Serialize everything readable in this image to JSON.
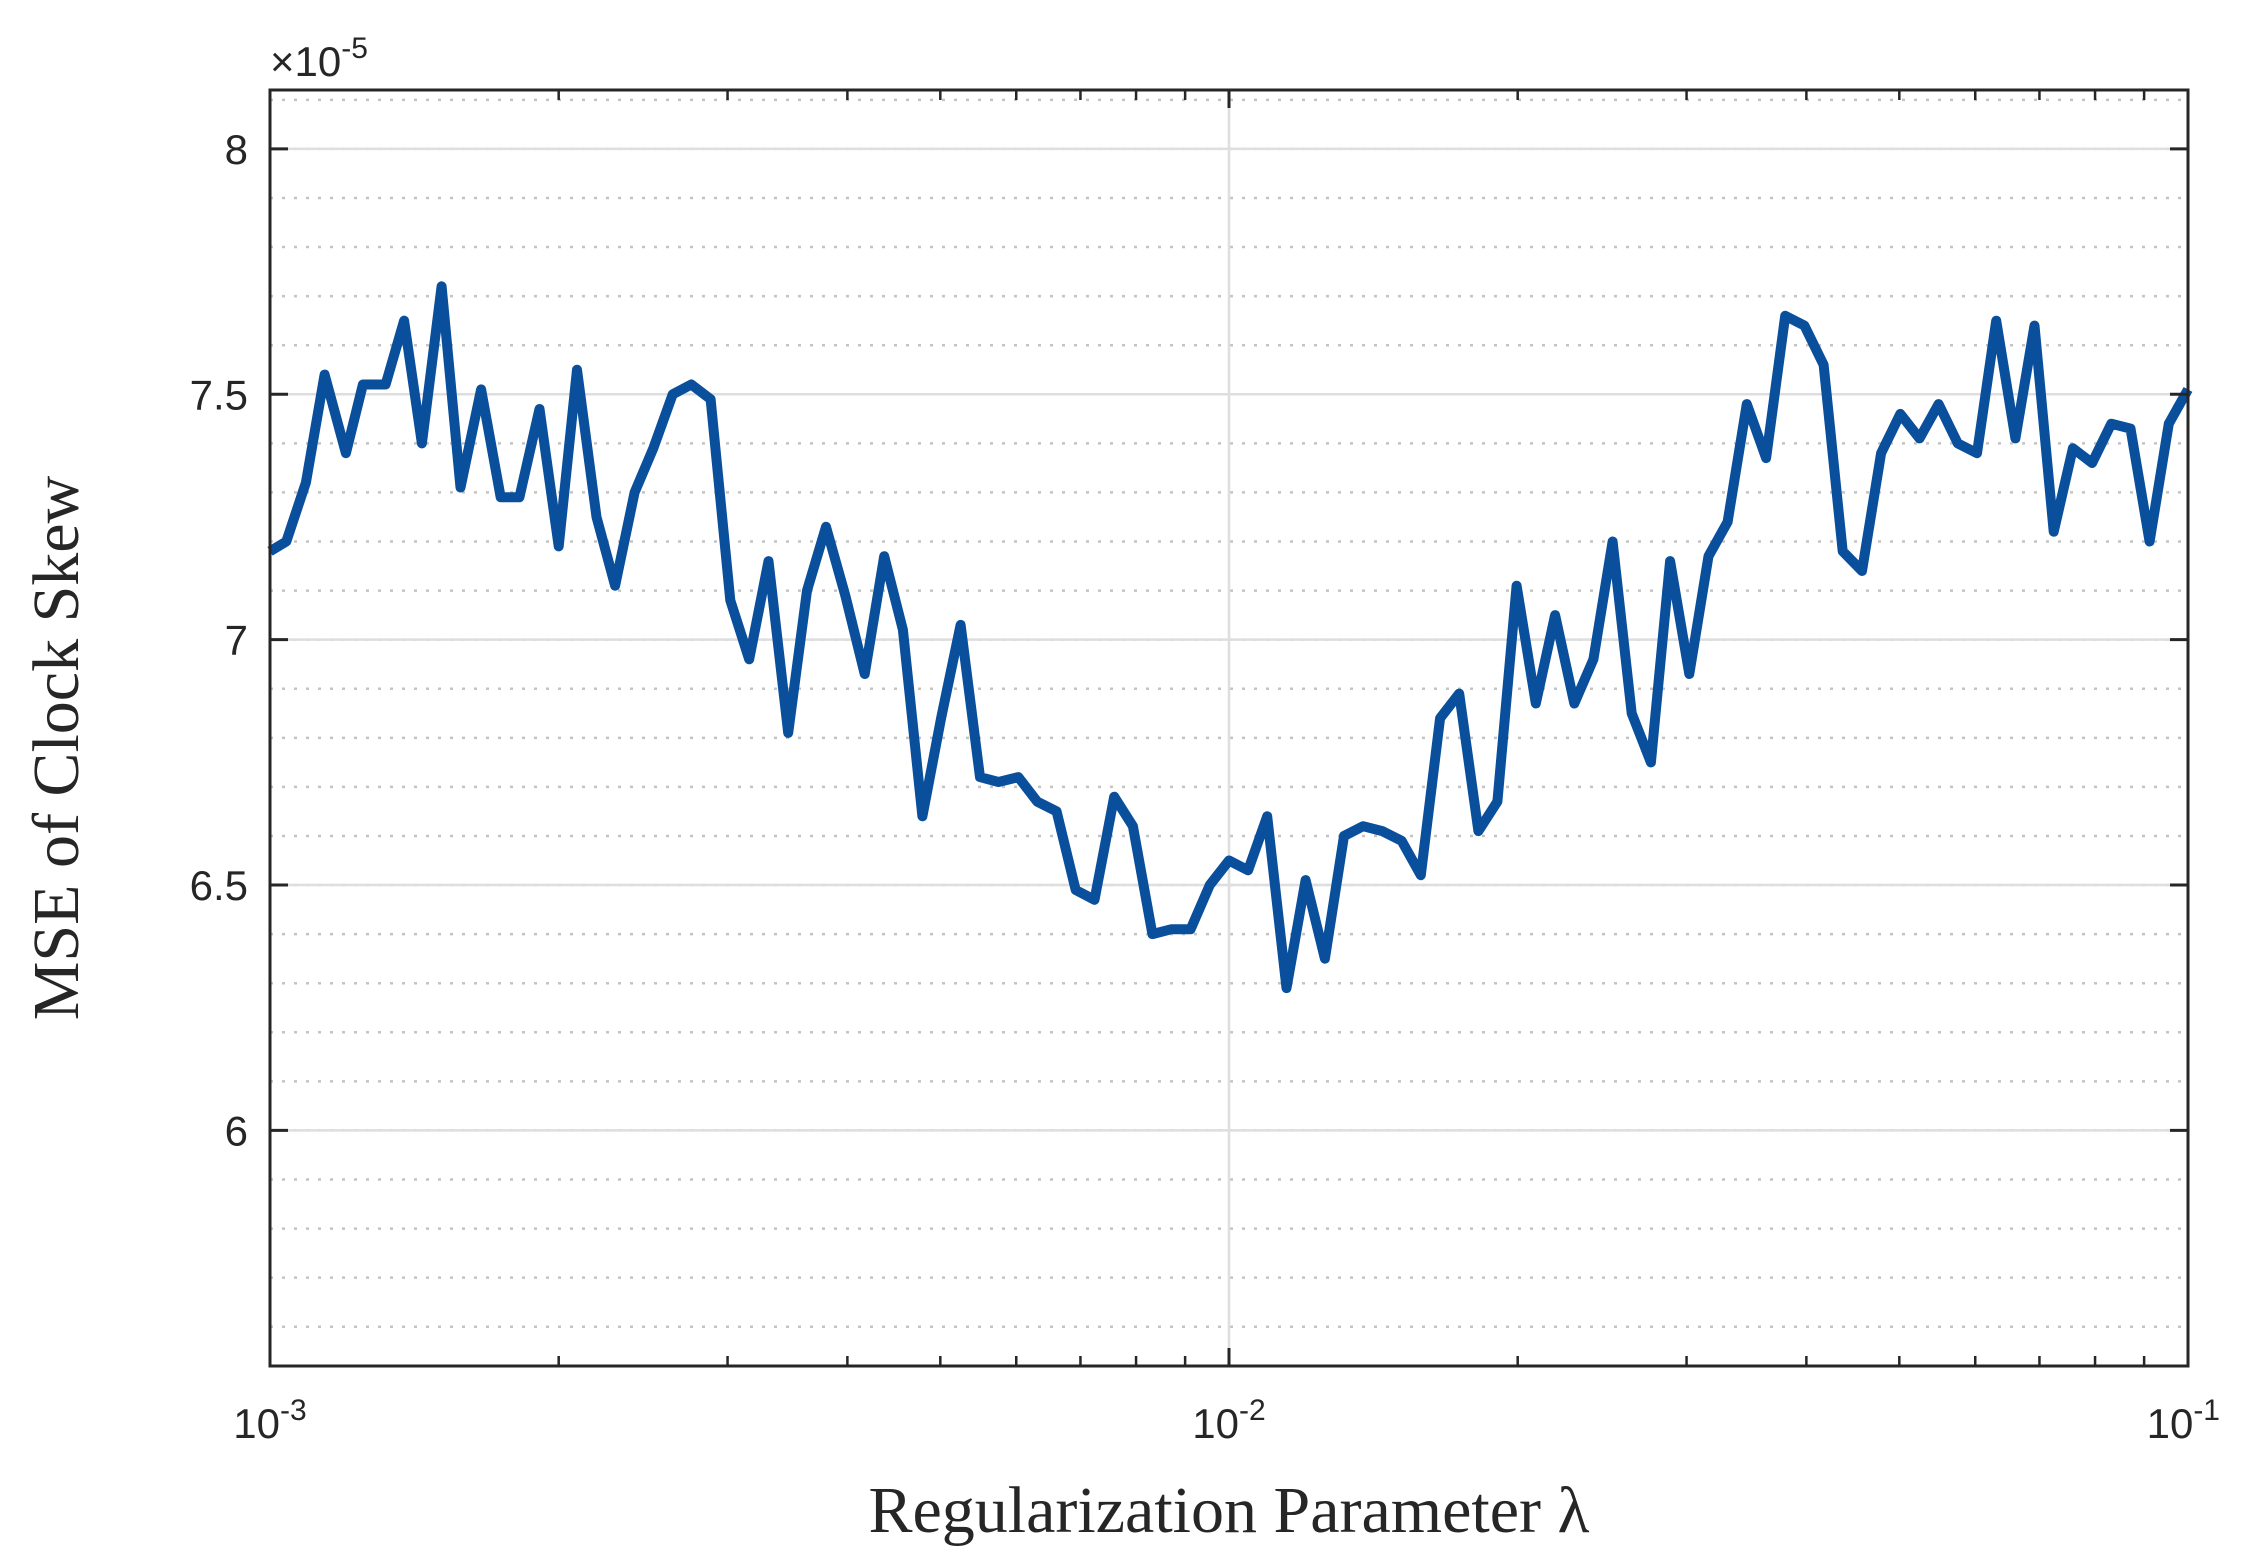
{
  "chart_data": {
    "type": "line",
    "xlabel": "Regularization Parameter λ",
    "ylabel": "MSE of Clock Skew",
    "x_scale": "log",
    "xlim": [
      0.001,
      0.1
    ],
    "ylim": [
      5.52e-05,
      8.12e-05
    ],
    "y_multiplier_label": {
      "base": "×10",
      "exponent": "-5"
    },
    "x_ticks": [
      {
        "value": 0.001,
        "base": "10",
        "exponent": "-3"
      },
      {
        "value": 0.01,
        "base": "10",
        "exponent": "-2"
      },
      {
        "value": 0.1,
        "base": "10",
        "exponent": "-1"
      }
    ],
    "y_ticks": [
      {
        "value": 6e-05,
        "label": "6"
      },
      {
        "value": 6.5e-05,
        "label": "6.5"
      },
      {
        "value": 7e-05,
        "label": "7"
      },
      {
        "value": 7.5e-05,
        "label": "7.5"
      },
      {
        "value": 8e-05,
        "label": "8"
      }
    ],
    "grid": {
      "major": true,
      "minor_y": true,
      "minor_y_step": 1e-06
    },
    "line_color": "#0a4f9c",
    "series": [
      {
        "x": [
          0.001,
          0.00104,
          0.00109,
          0.00114,
          0.0012,
          0.00125,
          0.00132,
          0.00138,
          0.00144,
          0.00151,
          0.00158,
          0.00166,
          0.00174,
          0.00182,
          0.00191,
          0.002,
          0.00209,
          0.00219,
          0.00229,
          0.0024,
          0.00251,
          0.00263,
          0.00275,
          0.00288,
          0.00302,
          0.00316,
          0.00331,
          0.00347,
          0.00363,
          0.0038,
          0.00398,
          0.00417,
          0.00437,
          0.00457,
          0.00479,
          0.00501,
          0.00525,
          0.0055,
          0.00575,
          0.00603,
          0.00631,
          0.00661,
          0.00692,
          0.00724,
          0.00759,
          0.00794,
          0.00832,
          0.00871,
          0.00912,
          0.00955,
          0.01,
          0.01047,
          0.01096,
          0.01148,
          0.01202,
          0.01259,
          0.01318,
          0.0138,
          0.01445,
          0.01514,
          0.01585,
          0.0166,
          0.01738,
          0.0182,
          0.01905,
          0.01995,
          0.02089,
          0.02188,
          0.02291,
          0.02399,
          0.02512,
          0.0263,
          0.02754,
          0.02884,
          0.0302,
          0.03162,
          0.03311,
          0.03467,
          0.03631,
          0.03802,
          0.03981,
          0.04169,
          0.04365,
          0.04571,
          0.04786,
          0.05012,
          0.05248,
          0.05495,
          0.05754,
          0.06026,
          0.0631,
          0.06607,
          0.06918,
          0.07244,
          0.07586,
          0.07943,
          0.08318,
          0.0871,
          0.0912,
          0.0955,
          0.1
        ],
        "y": [
          7.18,
          7.2,
          7.32,
          7.54,
          7.38,
          7.52,
          7.52,
          7.65,
          7.4,
          7.72,
          7.31,
          7.51,
          7.29,
          7.29,
          7.47,
          7.19,
          7.55,
          7.25,
          7.11,
          7.3,
          7.39,
          7.5,
          7.52,
          7.49,
          7.08,
          6.96,
          7.16,
          6.81,
          7.1,
          7.23,
          7.09,
          6.93,
          7.17,
          7.02,
          6.64,
          6.84,
          7.03,
          6.72,
          6.71,
          6.72,
          6.67,
          6.65,
          6.49,
          6.47,
          6.68,
          6.62,
          6.4,
          6.41,
          6.41,
          6.5,
          6.55,
          6.53,
          6.64,
          6.29,
          6.51,
          6.35,
          6.6,
          6.62,
          6.61,
          6.59,
          6.52,
          6.84,
          6.89,
          6.61,
          6.67,
          7.11,
          6.87,
          7.05,
          6.87,
          6.96,
          7.2,
          6.85,
          6.75,
          7.16,
          6.93,
          7.17,
          7.24,
          7.48,
          7.37,
          7.66,
          7.64,
          7.56,
          7.18,
          7.14,
          7.38,
          7.46,
          7.41,
          7.48,
          7.4,
          7.38,
          7.65,
          7.41,
          7.64,
          7.22,
          7.39,
          7.36,
          7.44,
          7.43,
          7.2,
          7.44,
          7.51
        ],
        "y_unit_scale": 1e-05
      }
    ]
  }
}
